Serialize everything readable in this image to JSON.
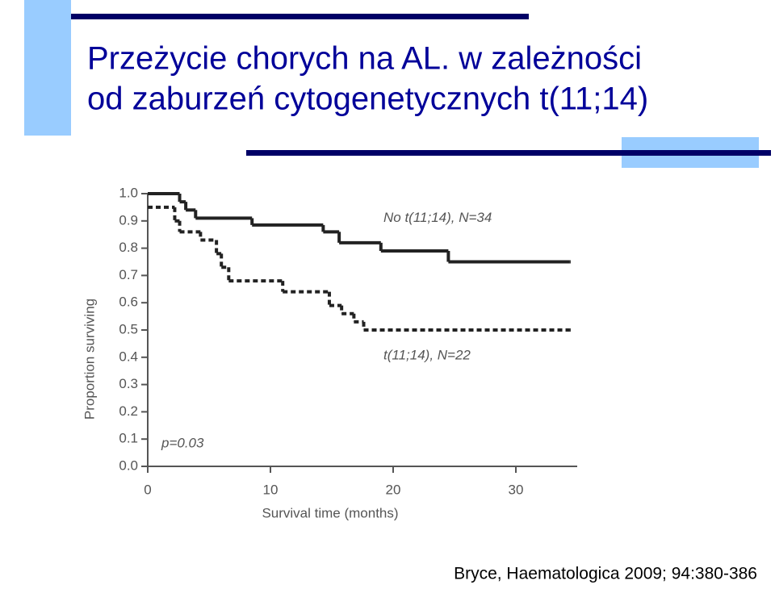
{
  "slide": {
    "title_lines": [
      "Przeżycie chorych na AL. w zależności",
      "od zaburzeń cytogenetycznych t(11;14)"
    ],
    "citation": "Bryce, Haematologica 2009; 94:380-386"
  },
  "chart_data": {
    "type": "step",
    "xlabel": "Survival time (months)",
    "ylabel": "Proportion surviving",
    "xlim": [
      0,
      35
    ],
    "ylim": [
      0,
      1
    ],
    "xticks": [
      0,
      10,
      20,
      30
    ],
    "yticks": [
      {
        "value": 0,
        "label": "0.0"
      },
      {
        "value": 0.1,
        "label": "0.1"
      },
      {
        "value": 0.2,
        "label": "0.2"
      },
      {
        "value": 0.3,
        "label": "0.3"
      },
      {
        "value": 0.4,
        "label": "0.4"
      },
      {
        "value": 0.5,
        "label": "0.5"
      },
      {
        "value": 0.6,
        "label": "0.6"
      },
      {
        "value": 0.7,
        "label": "0.7"
      },
      {
        "value": 0.8,
        "label": "0.8"
      },
      {
        "value": 0.9,
        "label": "0.9"
      },
      {
        "value": 1,
        "label": "1.0"
      }
    ],
    "annotation": "p=0.03",
    "series": [
      {
        "name": "No t(11;14), N=34",
        "color": "#222222",
        "dash": "solid",
        "x": [
          0,
          2.6,
          3.1,
          3.9,
          8.5,
          14.3,
          15.6,
          19.0,
          24.5,
          34.4
        ],
        "values": [
          1.0,
          0.97,
          0.94,
          0.91,
          0.885,
          0.86,
          0.82,
          0.79,
          0.75,
          0.75
        ]
      },
      {
        "name": "t(11;14), N=22",
        "color": "#222222",
        "dash": "dotted",
        "x": [
          0,
          2.2,
          2.6,
          4.3,
          5.6,
          6.0,
          6.6,
          11.0,
          14.8,
          15.8,
          16.8,
          17.6,
          34.4
        ],
        "values": [
          0.95,
          0.9,
          0.86,
          0.83,
          0.78,
          0.73,
          0.68,
          0.64,
          0.59,
          0.56,
          0.53,
          0.5,
          0.5
        ]
      }
    ]
  }
}
